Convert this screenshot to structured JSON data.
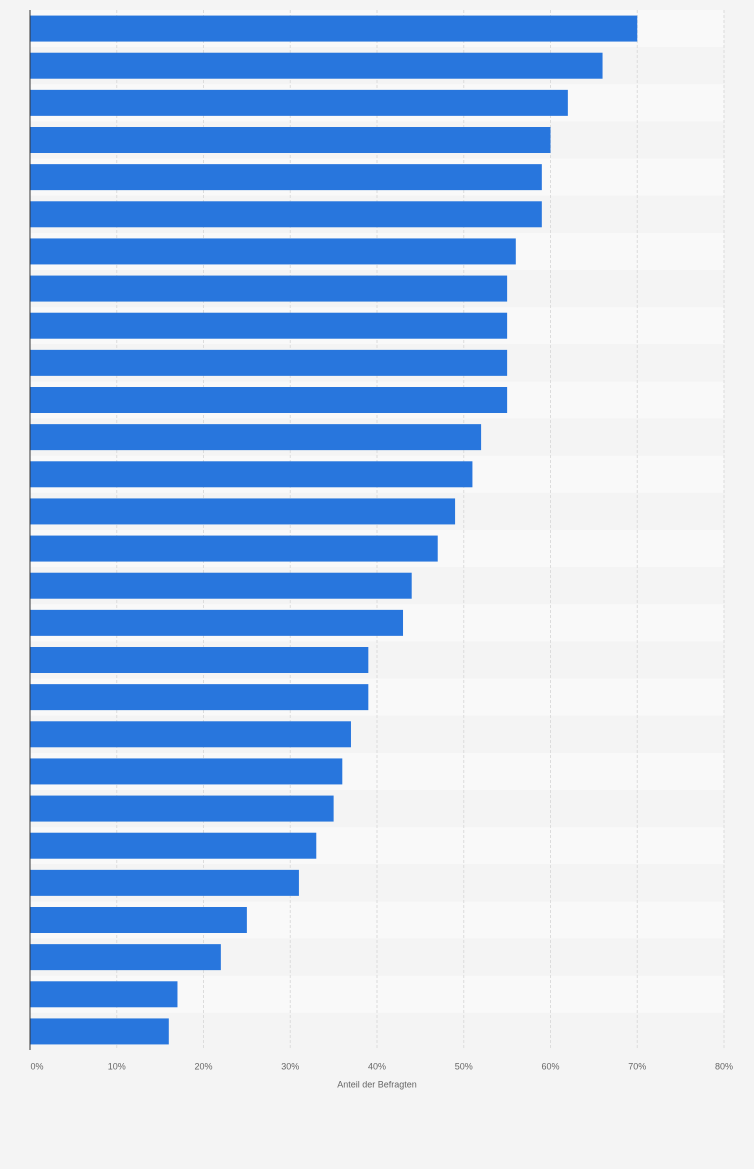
{
  "chart_data": {
    "type": "bar",
    "orientation": "horizontal",
    "categories": [
      null,
      null,
      null,
      null,
      null,
      null,
      null,
      null,
      null,
      null,
      null,
      null,
      null,
      null,
      null,
      null,
      null,
      null,
      null,
      null,
      null,
      null,
      null,
      null,
      null,
      null,
      null,
      null
    ],
    "values": [
      70,
      66,
      62,
      60,
      59,
      59,
      56,
      55,
      55,
      55,
      55,
      52,
      51,
      49,
      47,
      44,
      43,
      39,
      39,
      37,
      36,
      35,
      33,
      31,
      25,
      22,
      17,
      16
    ],
    "color": "#2876dd",
    "xlabel": "Anteil der Befragten",
    "xlim": [
      0,
      80
    ],
    "xticks": [
      {
        "value": 0,
        "label": "0%"
      },
      {
        "value": 10,
        "label": "10%"
      },
      {
        "value": 20,
        "label": "20%"
      },
      {
        "value": 30,
        "label": "30%"
      },
      {
        "value": 40,
        "label": "40%"
      },
      {
        "value": 50,
        "label": "50%"
      },
      {
        "value": 60,
        "label": "60%"
      },
      {
        "value": 70,
        "label": "70%"
      },
      {
        "value": 80,
        "label": "80%"
      }
    ],
    "grid": true
  }
}
